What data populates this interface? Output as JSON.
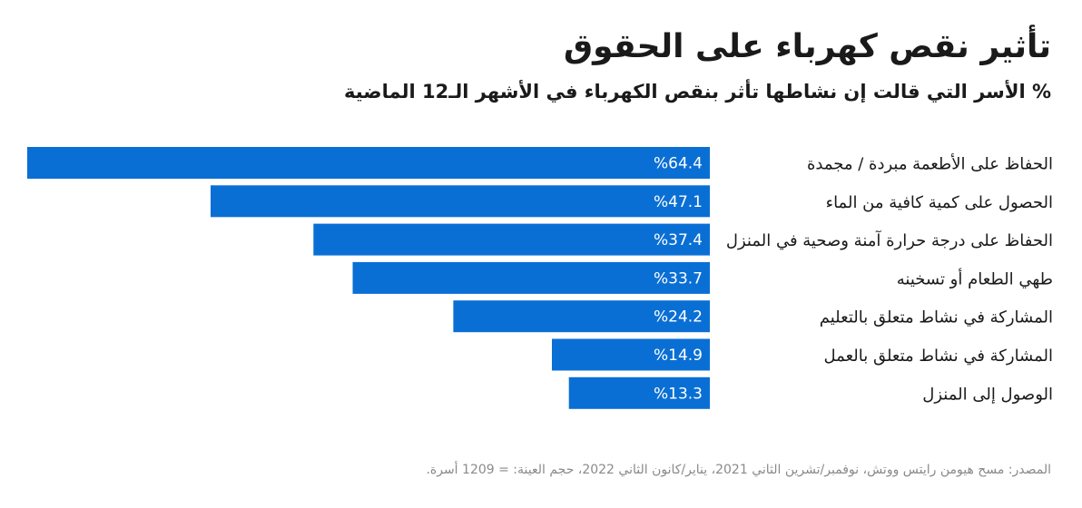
{
  "title": "تأثير نقص كهرباء على الحقوق",
  "subtitle": "% الأسر التي قالت إن نشاطها تأثر بنقص الكهرباء في الأشهر الـ12 الماضية",
  "source": "المصدر: مسح هيومن رايتس ووتش، نوفمبر/تشرين الثاني 2021، يناير/كانون الثاني 2022، حجم العينة: = 1209 أسرة.",
  "colors": {
    "bar": "#0a6fd4",
    "bar_label": "#ffffff",
    "category_label": "#1a1a1a"
  },
  "chart_data": {
    "type": "bar",
    "orientation": "horizontal",
    "direction": "rtl",
    "categories": [
      "الحفاظ على الأطعمة مبردة / مجمدة",
      "الحصول على كمية كافية من الماء",
      "الحفاظ على درجة حرارة آمنة وصحية في المنزل",
      "طهي الطعام أو تسخينه",
      "المشاركة في نشاط متعلق بالتعليم",
      "المشاركة في نشاط متعلق بالعمل",
      "الوصول إلى المنزل"
    ],
    "values": [
      64.4,
      47.1,
      37.4,
      33.7,
      24.2,
      14.9,
      13.3
    ],
    "value_labels": [
      "%64.4",
      "%47.1",
      "%37.4",
      "%33.7",
      "%24.2",
      "%14.9",
      "%13.3"
    ],
    "unit": "%",
    "xlim": [
      0,
      64.4
    ],
    "grid": false,
    "legend": "none"
  }
}
